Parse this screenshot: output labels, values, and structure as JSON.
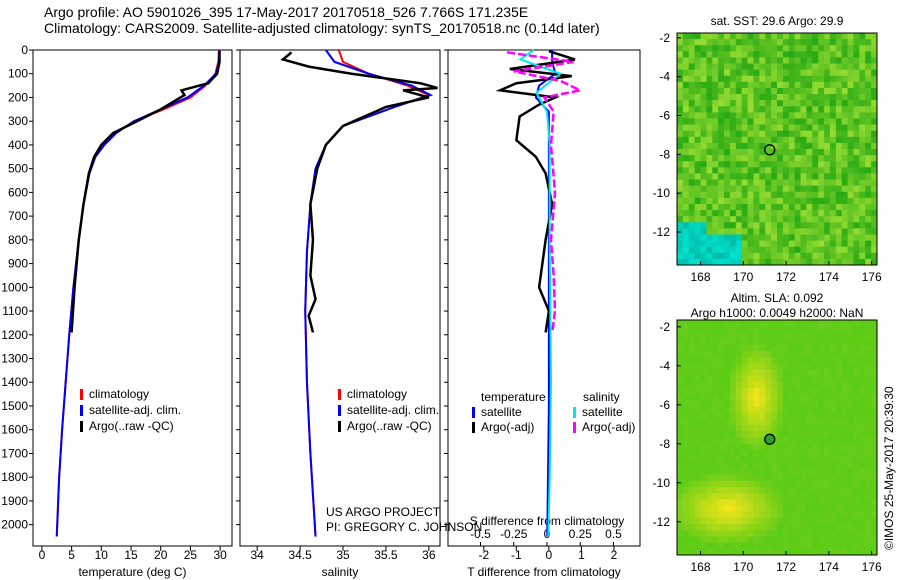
{
  "title_line1": "Argo profile: AO 5901026_395 17-May-2017 20170518_526 7.766S 171.235E",
  "title_line2": "Climatology: CARS2009. Satellite-adjusted climatology: synTS_20170518.nc (0.14d later)",
  "credit": "©IMOS 25-May-2017 20:39:30",
  "project_line1": "US ARGO PROJECT",
  "project_line2": "PI: GREGORY C. JOHNSON",
  "colors": {
    "clim": "#ff0000",
    "sat": "#0000ff",
    "argo": "#000000",
    "sal_sat": "#00e5ee",
    "sal_argo": "#ff00ff"
  },
  "chart_data": [
    {
      "type": "line",
      "id": "temperature",
      "xlabel": "temperature (deg C)",
      "xlim": [
        -1.5,
        32
      ],
      "ylim": [
        0,
        2090
      ],
      "xticks": [
        0,
        5,
        10,
        15,
        20,
        25,
        30
      ],
      "yticks": [
        0,
        100,
        200,
        300,
        400,
        500,
        600,
        700,
        800,
        900,
        1000,
        1100,
        1200,
        1300,
        1400,
        1500,
        1600,
        1700,
        1800,
        1900,
        2000
      ],
      "legend": [
        "climatology",
        "satellite-adj. clim.",
        "Argo(..raw -QC)"
      ],
      "series": [
        {
          "name": "climatology",
          "color": "#ff0000",
          "x": [
            29.8,
            29.7,
            29.2,
            27.5,
            25,
            20.5,
            15.5,
            12.5,
            10.5,
            9,
            8,
            7,
            6.2,
            5.3,
            4.6,
            4,
            3.4,
            2.9,
            2.5
          ],
          "y": [
            0,
            50,
            100,
            150,
            200,
            250,
            300,
            350,
            400,
            450,
            520,
            650,
            800,
            1000,
            1200,
            1400,
            1600,
            1800,
            2050
          ]
        },
        {
          "name": "satellite-adj. clim.",
          "color": "#0000ff",
          "x": [
            29.9,
            29.8,
            29.3,
            27.3,
            24.5,
            20,
            15.5,
            12.5,
            10.5,
            9,
            8,
            7,
            6.2,
            5.3,
            4.6,
            4,
            3.4,
            2.9,
            2.5
          ],
          "y": [
            0,
            50,
            100,
            150,
            200,
            250,
            300,
            350,
            400,
            450,
            520,
            650,
            800,
            1000,
            1200,
            1400,
            1600,
            1800,
            2050
          ]
        },
        {
          "name": "Argo(..raw -QC)",
          "color": "#000000",
          "x": [
            29.9,
            29.9,
            29.5,
            28,
            23.5,
            24,
            20,
            16,
            12,
            10,
            8.8,
            7.9,
            7,
            6.2,
            5.5,
            5
          ],
          "y": [
            5,
            50,
            100,
            140,
            170,
            190,
            250,
            300,
            350,
            400,
            450,
            520,
            650,
            800,
            1000,
            1190
          ]
        }
      ]
    },
    {
      "type": "line",
      "id": "salinity",
      "xlabel": "salinity",
      "xlim": [
        33.8,
        36.13
      ],
      "ylim": [
        0,
        2090
      ],
      "xticks": [
        34,
        34.5,
        35,
        35.5,
        36
      ],
      "legend": [
        "climatology",
        "satellite-adj. clim.",
        "Argo(..raw -QC)"
      ],
      "series": [
        {
          "name": "climatology",
          "color": "#ff0000",
          "x": [
            34.95,
            35.0,
            35.3,
            35.75,
            36.0,
            35.6,
            35.0,
            34.8,
            34.68,
            34.62,
            34.58,
            34.56,
            34.58,
            34.62,
            34.68
          ],
          "y": [
            0,
            50,
            100,
            150,
            190,
            240,
            320,
            400,
            500,
            650,
            850,
            1100,
            1400,
            1700,
            2050
          ]
        },
        {
          "name": "satellite-adj. clim.",
          "color": "#0000ff",
          "x": [
            34.8,
            34.9,
            35.3,
            35.8,
            36.02,
            35.6,
            35.0,
            34.8,
            34.68,
            34.62,
            34.58,
            34.56,
            34.58,
            34.62,
            34.68
          ],
          "y": [
            0,
            50,
            100,
            150,
            190,
            240,
            320,
            400,
            500,
            650,
            850,
            1100,
            1400,
            1700,
            2050
          ]
        },
        {
          "name": "Argo(..raw -QC)",
          "color": "#000000",
          "x": [
            34.4,
            34.3,
            34.6,
            35.1,
            35.9,
            36.1,
            35.7,
            36.0,
            35.5,
            35.0,
            34.8,
            34.7,
            34.62,
            34.65,
            34.62,
            34.68,
            34.6,
            34.65
          ],
          "y": [
            10,
            40,
            70,
            100,
            140,
            160,
            170,
            200,
            240,
            320,
            400,
            500,
            650,
            800,
            950,
            1050,
            1120,
            1190
          ]
        }
      ]
    },
    {
      "type": "line",
      "id": "differences",
      "xlabel": "T difference from climatology",
      "x2label": "S difference from climatology",
      "xlim": [
        -3.1,
        2.8
      ],
      "ylim": [
        0,
        2090
      ],
      "xticks": [
        -2,
        -1,
        0,
        1,
        2
      ],
      "x2ticks": [
        -0.5,
        -0.25,
        0,
        0.25,
        0.5
      ],
      "legend_headers": [
        "temperature",
        "salinity"
      ],
      "legend": [
        "satellite",
        "Argo(-adj)",
        "satellite",
        "Argo(-adj)"
      ],
      "series": [
        {
          "name": "T satellite",
          "color": "#0000ff",
          "x": [
            0.1,
            0.1,
            0.2,
            -0.3,
            -0.4,
            0,
            0,
            0,
            0,
            0,
            -0.05
          ],
          "y": [
            0,
            50,
            100,
            150,
            200,
            260,
            350,
            500,
            800,
            1500,
            2050
          ]
        },
        {
          "name": "T Argo(-adj)",
          "color": "#000000",
          "x": [
            0,
            0.8,
            -1.2,
            0.7,
            -1.0,
            -1.5,
            0.2,
            -0.3,
            -0.9,
            -1.0,
            -0.4,
            -0.1,
            0.1,
            -0.1,
            -0.3,
            0.0,
            -0.1
          ],
          "y": [
            5,
            40,
            80,
            110,
            140,
            170,
            200,
            230,
            280,
            380,
            450,
            520,
            650,
            800,
            1000,
            1100,
            1190
          ]
        },
        {
          "name": "S satellite",
          "color": "#00e5ee",
          "x": [
            -0.1,
            -0.2,
            0.1,
            -0.08,
            0,
            0.02,
            0.02,
            0.03,
            0.02,
            0.01
          ],
          "y": [
            0,
            40,
            100,
            180,
            260,
            400,
            800,
            1400,
            1800,
            2050
          ]
        },
        {
          "name": "S Argo(-adj)",
          "color": "#ff00ff",
          "x": [
            -0.3,
            0.2,
            -0.25,
            0.1,
            0.25,
            -0.02,
            0.05,
            0.03,
            0.06,
            0.03,
            0.05,
            0.06,
            0.04
          ],
          "y": [
            10,
            50,
            90,
            130,
            170,
            200,
            260,
            400,
            600,
            800,
            950,
            1100,
            1190
          ]
        }
      ]
    },
    {
      "type": "heatmap",
      "id": "sst_map",
      "title": "sat. SST: 29.6 Argo: 29.9",
      "xticks": [
        168,
        170,
        172,
        174,
        176
      ],
      "yticks": [
        -2,
        -4,
        -6,
        -8,
        -10,
        -12
      ],
      "xlim": [
        166.9,
        176.25
      ],
      "ylim": [
        -13.7,
        -1.75
      ],
      "argo_position": [
        171.235,
        -7.766
      ]
    },
    {
      "type": "heatmap",
      "id": "sla_map",
      "title_line1": "Altim. SLA: 0.092",
      "title_line2": "Argo h1000: 0.0049 h2000: NaN",
      "xticks": [
        168,
        170,
        172,
        174,
        176
      ],
      "yticks": [
        -2,
        -4,
        -6,
        -8,
        -10,
        -12
      ],
      "xlim": [
        166.9,
        176.25
      ],
      "ylim": [
        -13.7,
        -1.65
      ],
      "argo_position": [
        171.235,
        -7.766
      ]
    }
  ]
}
